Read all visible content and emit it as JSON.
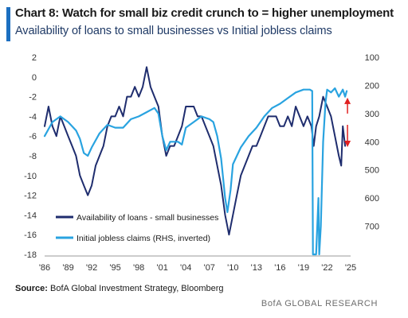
{
  "header": {
    "title": "Chart 8: Watch for small biz credit crunch to = higher unemployment",
    "subtitle": "Availability of loans to small businesses vs Initial jobless claims",
    "accent_color": "#1c6fc0"
  },
  "footer": {
    "source_label": "Source:",
    "source_text": "BofA Global Investment Strategy, Bloomberg",
    "credit": "BofA GLOBAL RESEARCH"
  },
  "chart_data": {
    "type": "line",
    "x_ticks": [
      "'86",
      "'89",
      "'92",
      "'95",
      "'98",
      "'01",
      "'04",
      "'07",
      "'10",
      "'13",
      "'16",
      "'19",
      "'22",
      "'25"
    ],
    "xlim": [
      1986,
      2025
    ],
    "left_axis": {
      "ticks": [
        2,
        0,
        -2,
        -4,
        -6,
        -8,
        -10,
        -12,
        -14,
        -16,
        -18
      ],
      "ylim": [
        -18,
        2
      ]
    },
    "right_axis": {
      "ticks": [
        100,
        200,
        300,
        400,
        500,
        600,
        700
      ],
      "ylim": [
        100,
        800
      ],
      "inverted": true,
      "label": ""
    },
    "series": [
      {
        "name": "Availability of loans - small businesses",
        "axis": "left",
        "color": "#1f2d6e",
        "points": [
          [
            1986.0,
            -5
          ],
          [
            1986.5,
            -3
          ],
          [
            1987.0,
            -5
          ],
          [
            1987.5,
            -6
          ],
          [
            1988.0,
            -4
          ],
          [
            1988.5,
            -5
          ],
          [
            1989.0,
            -6
          ],
          [
            1989.5,
            -7
          ],
          [
            1990.0,
            -8
          ],
          [
            1990.5,
            -10
          ],
          [
            1991.0,
            -11
          ],
          [
            1991.5,
            -12
          ],
          [
            1992.0,
            -11
          ],
          [
            1992.5,
            -9
          ],
          [
            1993.0,
            -8
          ],
          [
            1993.5,
            -7
          ],
          [
            1994.0,
            -5
          ],
          [
            1994.5,
            -4
          ],
          [
            1995.0,
            -4
          ],
          [
            1995.5,
            -3
          ],
          [
            1996.0,
            -4
          ],
          [
            1996.5,
            -2
          ],
          [
            1997.0,
            -2
          ],
          [
            1997.5,
            -1
          ],
          [
            1998.0,
            -2
          ],
          [
            1998.5,
            -1
          ],
          [
            1999.0,
            1
          ],
          [
            1999.5,
            -1
          ],
          [
            2000.0,
            -2
          ],
          [
            2000.5,
            -3
          ],
          [
            2001.0,
            -6
          ],
          [
            2001.5,
            -8
          ],
          [
            2002.0,
            -7
          ],
          [
            2002.5,
            -7
          ],
          [
            2003.0,
            -6
          ],
          [
            2003.5,
            -5
          ],
          [
            2004.0,
            -3
          ],
          [
            2004.5,
            -3
          ],
          [
            2005.0,
            -3
          ],
          [
            2005.5,
            -4
          ],
          [
            2006.0,
            -4
          ],
          [
            2006.5,
            -5
          ],
          [
            2007.0,
            -6
          ],
          [
            2007.5,
            -7
          ],
          [
            2008.0,
            -9
          ],
          [
            2008.5,
            -11
          ],
          [
            2009.0,
            -14
          ],
          [
            2009.5,
            -16
          ],
          [
            2010.0,
            -14
          ],
          [
            2010.5,
            -12
          ],
          [
            2011.0,
            -10
          ],
          [
            2011.5,
            -9
          ],
          [
            2012.0,
            -8
          ],
          [
            2012.5,
            -7
          ],
          [
            2013.0,
            -7
          ],
          [
            2013.5,
            -6
          ],
          [
            2014.0,
            -5
          ],
          [
            2014.5,
            -4
          ],
          [
            2015.0,
            -4
          ],
          [
            2015.5,
            -4
          ],
          [
            2016.0,
            -5
          ],
          [
            2016.5,
            -5
          ],
          [
            2017.0,
            -4
          ],
          [
            2017.5,
            -5
          ],
          [
            2018.0,
            -3
          ],
          [
            2018.5,
            -4
          ],
          [
            2019.0,
            -5
          ],
          [
            2019.5,
            -4
          ],
          [
            2020.0,
            -5
          ],
          [
            2020.3,
            -7
          ],
          [
            2020.6,
            -5
          ],
          [
            2021.0,
            -4
          ],
          [
            2021.5,
            -2
          ],
          [
            2022.0,
            -3
          ],
          [
            2022.5,
            -4
          ],
          [
            2023.0,
            -6
          ],
          [
            2023.5,
            -8
          ],
          [
            2023.8,
            -9
          ],
          [
            2024.0,
            -5
          ],
          [
            2024.3,
            -7
          ]
        ]
      },
      {
        "name": "Initial jobless claims (RHS, inverted)",
        "axis": "right",
        "color": "#29a3e0",
        "points": [
          [
            1986.0,
            380
          ],
          [
            1987.0,
            330
          ],
          [
            1988.0,
            310
          ],
          [
            1989.0,
            330
          ],
          [
            1990.0,
            360
          ],
          [
            1990.5,
            390
          ],
          [
            1991.0,
            440
          ],
          [
            1991.5,
            450
          ],
          [
            1992.0,
            420
          ],
          [
            1993.0,
            370
          ],
          [
            1994.0,
            340
          ],
          [
            1995.0,
            350
          ],
          [
            1996.0,
            350
          ],
          [
            1997.0,
            320
          ],
          [
            1998.0,
            310
          ],
          [
            1999.0,
            295
          ],
          [
            2000.0,
            280
          ],
          [
            2000.5,
            300
          ],
          [
            2001.0,
            380
          ],
          [
            2001.5,
            430
          ],
          [
            2002.0,
            400
          ],
          [
            2003.0,
            400
          ],
          [
            2003.5,
            410
          ],
          [
            2004.0,
            350
          ],
          [
            2005.0,
            330
          ],
          [
            2006.0,
            310
          ],
          [
            2007.0,
            320
          ],
          [
            2007.5,
            330
          ],
          [
            2008.0,
            380
          ],
          [
            2008.5,
            460
          ],
          [
            2009.0,
            600
          ],
          [
            2009.3,
            650
          ],
          [
            2009.7,
            570
          ],
          [
            2010.0,
            480
          ],
          [
            2011.0,
            420
          ],
          [
            2012.0,
            380
          ],
          [
            2013.0,
            350
          ],
          [
            2014.0,
            310
          ],
          [
            2015.0,
            280
          ],
          [
            2016.0,
            265
          ],
          [
            2017.0,
            245
          ],
          [
            2018.0,
            225
          ],
          [
            2019.0,
            215
          ],
          [
            2019.8,
            215
          ],
          [
            2020.1,
            220
          ],
          [
            2020.2,
            800
          ],
          [
            2020.6,
            800
          ],
          [
            2020.9,
            600
          ],
          [
            2021.0,
            800
          ],
          [
            2021.2,
            700
          ],
          [
            2021.5,
            400
          ],
          [
            2021.8,
            260
          ],
          [
            2022.0,
            215
          ],
          [
            2022.5,
            225
          ],
          [
            2023.0,
            210
          ],
          [
            2023.5,
            240
          ],
          [
            2023.8,
            225
          ],
          [
            2024.0,
            215
          ],
          [
            2024.3,
            240
          ],
          [
            2024.5,
            220
          ]
        ]
      }
    ],
    "annotations": [
      {
        "type": "arrow-up",
        "x": 2024.6,
        "y_right": 300,
        "color": "#e02020"
      },
      {
        "type": "arrow-down",
        "x": 2024.6,
        "y_right": 340,
        "color": "#e02020"
      }
    ],
    "legend": {
      "placement": "bottom-left"
    },
    "grid": false
  }
}
